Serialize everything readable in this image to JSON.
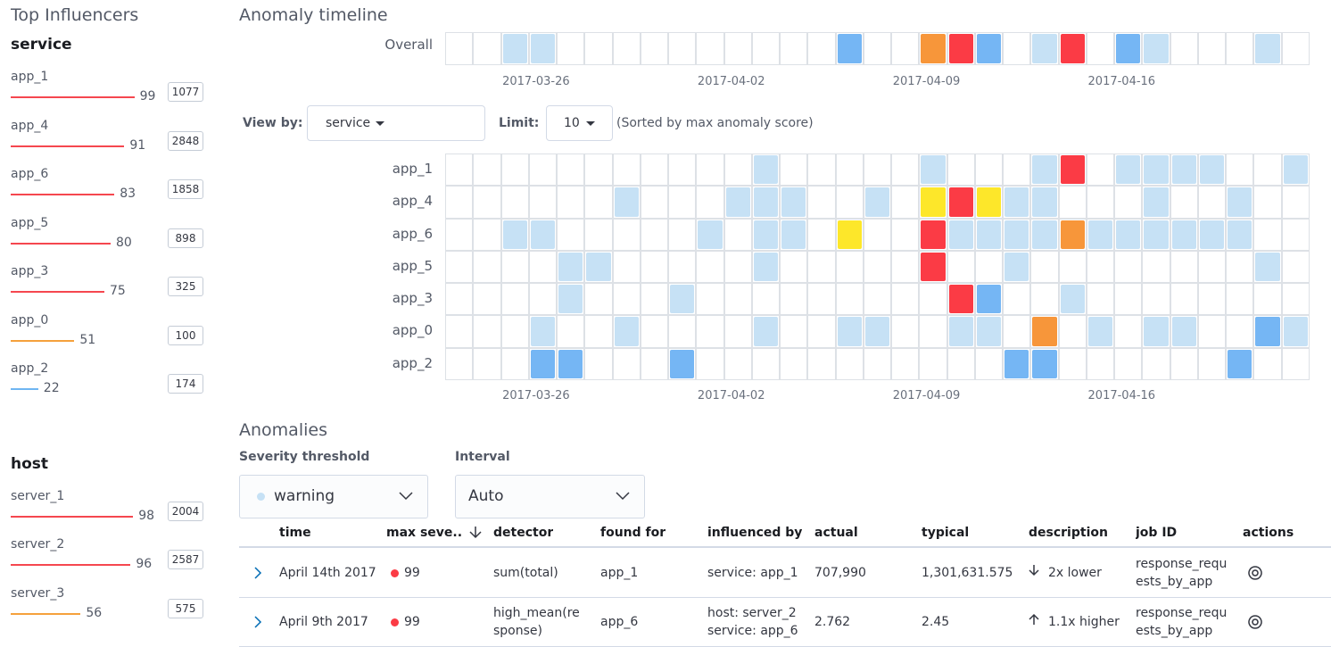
{
  "influencers": {
    "title": "Top Influencers",
    "groups": [
      {
        "name": "service",
        "items": [
          {
            "name": "app_1",
            "score": 99,
            "count": 1077,
            "color": "#f5474f"
          },
          {
            "name": "app_4",
            "score": 91,
            "count": 2848,
            "color": "#f5474f"
          },
          {
            "name": "app_6",
            "score": 83,
            "count": 1858,
            "color": "#f5474f"
          },
          {
            "name": "app_5",
            "score": 80,
            "count": 898,
            "color": "#f5474f"
          },
          {
            "name": "app_3",
            "score": 75,
            "count": 325,
            "color": "#f5474f"
          },
          {
            "name": "app_0",
            "score": 51,
            "count": 100,
            "color": "#f5a13c"
          },
          {
            "name": "app_2",
            "score": 22,
            "count": 174,
            "color": "#6fb6f2"
          }
        ]
      },
      {
        "name": "host",
        "items": [
          {
            "name": "server_1",
            "score": 98,
            "count": 2004,
            "color": "#f5474f"
          },
          {
            "name": "server_2",
            "score": 96,
            "count": 2587,
            "color": "#f5474f"
          },
          {
            "name": "server_3",
            "score": 56,
            "count": 575,
            "color": "#f5a13c"
          }
        ]
      }
    ]
  },
  "timeline": {
    "title": "Anomaly timeline",
    "overall_label": "Overall",
    "overall": "..ll..........b..orb.lr.bl...l.",
    "dates": [
      "2017-03-26",
      "2017-04-02",
      "2017-04-09",
      "2017-04-16"
    ],
    "view_by_label": "View by:",
    "view_by": "service",
    "limit_label": "Limit:",
    "limit": 10,
    "sorted_note": "(Sorted by max anomaly score)",
    "severity_colors": {
      "l": "#c6e1f5",
      "b": "#75b6f4",
      "y": "#fde72a",
      "o": "#f7963a",
      "r": "#fb3b45"
    },
    "rows": [
      {
        "label": "app_1",
        "cells": "...........l.....l...lr.llll..l"
      },
      {
        "label": "app_4",
        "cells": "......l...lll..l.yryll...l..l.."
      },
      {
        "label": "app_6",
        "cells": "..ll.....l.ll.y..rllllollllll.."
      },
      {
        "label": "app_5",
        "cells": "....ll.....l.....r..l........l."
      },
      {
        "label": "app_3",
        "cells": "....l...l.........rb..l........"
      },
      {
        "label": "app_0",
        "cells": "...l..l....l..ll..ll.o.l.ll..bl"
      },
      {
        "label": "app_2",
        "cells": "...bb...b...........bb......b.."
      }
    ]
  },
  "anomalies": {
    "title": "Anomalies",
    "severity_label": "Severity threshold",
    "severity": "warning",
    "interval_label": "Interval",
    "interval": "Auto",
    "columns": [
      "time",
      "max seve...",
      "detector",
      "found for",
      "influenced by",
      "actual",
      "typical",
      "description",
      "job ID",
      "actions"
    ],
    "rows": [
      {
        "time": "April 14th 2017",
        "score": 99,
        "detector": "sum(total)",
        "found_for": "app_1",
        "influenced_by": [
          "service: app_1"
        ],
        "actual": "707,990",
        "typical": "1,301,631.575",
        "description": "2x lower",
        "job_id": "response_requests_by_app"
      },
      {
        "time": "April 9th 2017",
        "score": 99,
        "detector": "high_mean(response)",
        "found_for": "app_6",
        "influenced_by": [
          "host: server_2",
          "service: app_6"
        ],
        "actual": "2.762",
        "typical": "2.45",
        "description": "1.1x higher",
        "job_id": "response_requests_by_app"
      }
    ]
  }
}
